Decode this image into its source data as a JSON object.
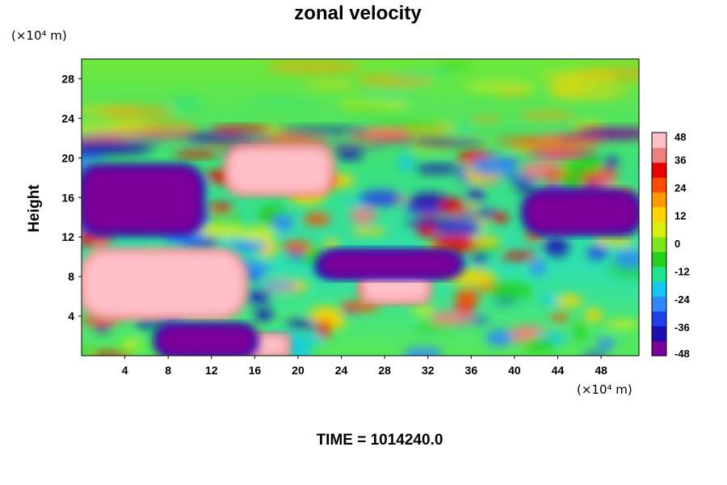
{
  "chart_data": {
    "type": "heatmap",
    "title": "zonal velocity",
    "ylabel": "Height",
    "x_unit": "(×10⁴ m)",
    "y_unit": "(×10⁴ m)",
    "xlim": [
      0,
      51.5
    ],
    "ylim": [
      0,
      30
    ],
    "x_ticks": [
      4,
      8,
      12,
      16,
      20,
      24,
      28,
      32,
      36,
      40,
      44,
      48
    ],
    "y_ticks": [
      4,
      8,
      12,
      16,
      20,
      24,
      28
    ],
    "colorbar": {
      "min": -48,
      "max": 48,
      "ticks": [
        48,
        36,
        24,
        12,
        0,
        -12,
        -24,
        -36,
        -48
      ],
      "colors": [
        "#7b0099",
        "#1a0fb0",
        "#1e3fe8",
        "#2f86ff",
        "#11c9ef",
        "#1fe38d",
        "#22d21c",
        "#7fe61a",
        "#d8ee10",
        "#ffd400",
        "#ff9900",
        "#ff4a00",
        "#e80000",
        "#f08080",
        "#ffc0c8"
      ]
    },
    "regions": [
      {
        "field": "max",
        "value": 48,
        "x": [
          13.5,
          23
        ],
        "y": [
          16.5,
          21
        ]
      },
      {
        "field": "max",
        "value": 48,
        "x": [
          0,
          15
        ],
        "y": [
          4,
          10.5
        ]
      },
      {
        "field": "max",
        "value": 48,
        "x": [
          26,
          32
        ],
        "y": [
          5.5,
          8.5
        ]
      },
      {
        "field": "max",
        "value": 48,
        "x": [
          15,
          19
        ],
        "y": [
          0,
          2
        ]
      },
      {
        "field": "min",
        "value": -48,
        "x": [
          0,
          11
        ],
        "y": [
          12.5,
          19
        ]
      },
      {
        "field": "min",
        "value": -48,
        "x": [
          7,
          16
        ],
        "y": [
          0,
          3
        ]
      },
      {
        "field": "min",
        "value": -48,
        "x": [
          41,
          51.5
        ],
        "y": [
          12.5,
          16.5
        ]
      },
      {
        "field": "min",
        "value": -48,
        "x": [
          22,
          35
        ],
        "y": [
          8,
          10.5
        ]
      }
    ],
    "footer": "TIME = 1014240.0"
  }
}
